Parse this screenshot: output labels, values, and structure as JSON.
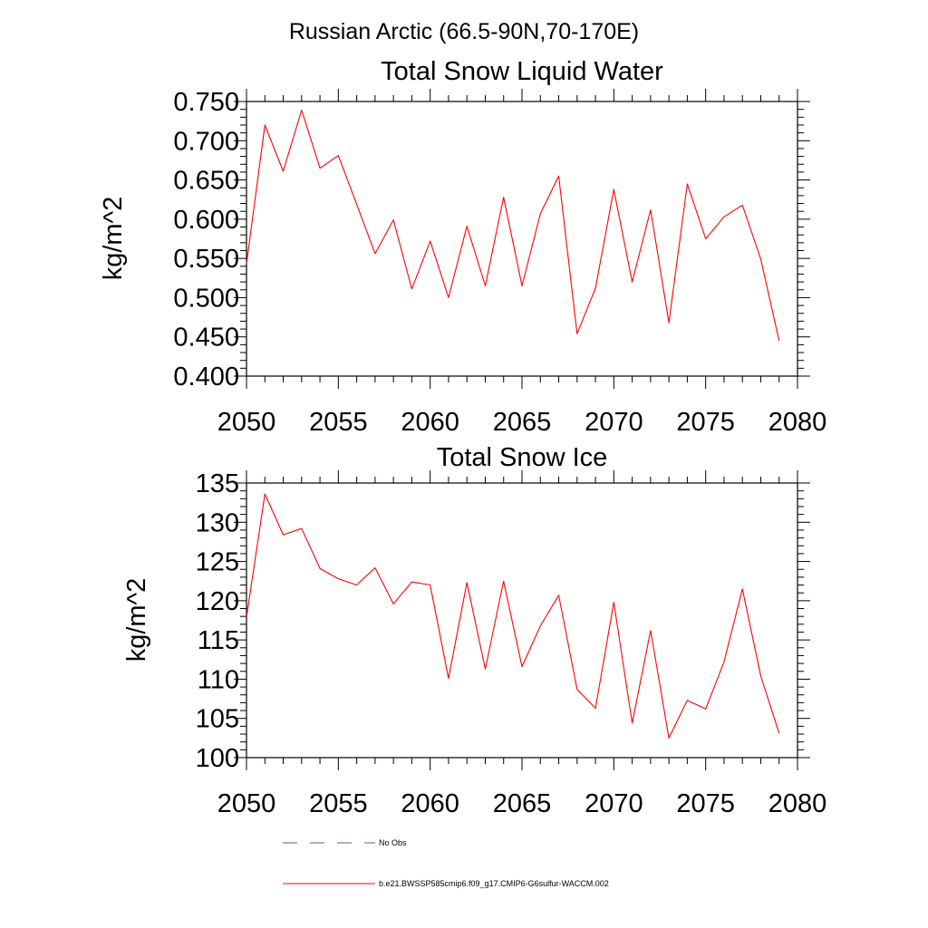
{
  "figure": {
    "title": "Russian Arctic (66.5-90N,70-170E)"
  },
  "colors": {
    "series": "#ff0000",
    "obs": "#5a5aa0",
    "axis": "#000000"
  },
  "chart_data": [
    {
      "type": "line",
      "title": "Total Snow Liquid Water",
      "xlabel": "",
      "ylabel": "kg/m^2",
      "xlim": [
        2050,
        2080
      ],
      "ylim": [
        0.4,
        0.75
      ],
      "x_ticks": [
        2050,
        2055,
        2060,
        2065,
        2070,
        2075,
        2080
      ],
      "x_tick_labels": [
        "2050",
        "2055",
        "2060",
        "2065",
        "2070",
        "2075",
        "2080"
      ],
      "y_ticks": [
        0.4,
        0.45,
        0.5,
        0.55,
        0.6,
        0.65,
        0.7,
        0.75
      ],
      "y_tick_labels": [
        "0.400",
        "0.450",
        "0.500",
        "0.550",
        "0.600",
        "0.650",
        "0.700",
        "0.750"
      ],
      "grid": false,
      "series": [
        {
          "name": "b.e21.BWSSP585cmip6.f09_g17.CMIP6-G6sulfur-WACCM.002",
          "x": [
            2050,
            2051,
            2052,
            2053,
            2054,
            2055,
            2056,
            2057,
            2058,
            2059,
            2060,
            2061,
            2062,
            2063,
            2064,
            2065,
            2066,
            2067,
            2068,
            2069,
            2070,
            2071,
            2072,
            2073,
            2074,
            2075,
            2076,
            2077,
            2078,
            2079
          ],
          "values": [
            0.543,
            0.72,
            0.661,
            0.739,
            0.665,
            0.681,
            0.619,
            0.556,
            0.599,
            0.511,
            0.572,
            0.5,
            0.591,
            0.515,
            0.628,
            0.515,
            0.607,
            0.655,
            0.454,
            0.512,
            0.638,
            0.52,
            0.612,
            0.468,
            0.645,
            0.575,
            0.603,
            0.618,
            0.549,
            0.445
          ]
        }
      ]
    },
    {
      "type": "line",
      "title": "Total Snow Ice",
      "xlabel": "",
      "ylabel": "kg/m^2",
      "xlim": [
        2050,
        2080
      ],
      "ylim": [
        100,
        135
      ],
      "x_ticks": [
        2050,
        2055,
        2060,
        2065,
        2070,
        2075,
        2080
      ],
      "x_tick_labels": [
        "2050",
        "2055",
        "2060",
        "2065",
        "2070",
        "2075",
        "2080"
      ],
      "y_ticks": [
        100,
        105,
        110,
        115,
        120,
        125,
        130,
        135
      ],
      "y_tick_labels": [
        "100",
        "105",
        "110",
        "115",
        "120",
        "125",
        "130",
        "135"
      ],
      "grid": false,
      "series": [
        {
          "name": "b.e21.BWSSP585cmip6.f09_g17.CMIP6-G6sulfur-WACCM.002",
          "x": [
            2050,
            2051,
            2052,
            2053,
            2054,
            2055,
            2056,
            2057,
            2058,
            2059,
            2060,
            2061,
            2062,
            2063,
            2064,
            2065,
            2066,
            2067,
            2068,
            2069,
            2070,
            2071,
            2072,
            2073,
            2074,
            2075,
            2076,
            2077,
            2078,
            2079
          ],
          "values": [
            117.9,
            133.6,
            128.4,
            129.2,
            124.1,
            122.8,
            122.0,
            124.2,
            119.6,
            122.4,
            122.0,
            110.1,
            122.3,
            111.3,
            122.5,
            111.6,
            116.8,
            120.7,
            108.7,
            106.3,
            119.8,
            104.4,
            116.2,
            102.5,
            107.3,
            106.2,
            112.2,
            121.5,
            110.4,
            103.1
          ]
        }
      ]
    }
  ],
  "legend": {
    "entries": [
      {
        "label": "No Obs",
        "style": "dashed",
        "color": "#5a5aa0"
      },
      {
        "label": "b.e21.BWSSP585cmip6.f09_g17.CMIP6-G6sulfur-WACCM.002",
        "style": "solid",
        "color": "#ff0000"
      }
    ]
  }
}
